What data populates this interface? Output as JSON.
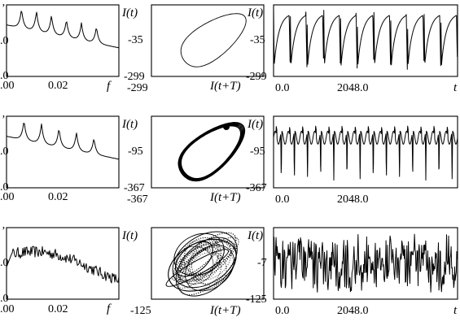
{
  "chart_data": [
    {
      "type": "line",
      "panel": "spectrum",
      "row": 1,
      "y_tick_labels": [
        "ʼ",
        ".0",
        ".0"
      ],
      "x_tick_labels": [
        ".00",
        "0.02"
      ],
      "xlabel": "f",
      "peaks_f": [
        0.006,
        0.012,
        0.018,
        0.024,
        0.03,
        0.036
      ],
      "peak_heights": [
        0.95,
        0.92,
        0.86,
        0.8,
        0.75,
        0.7
      ]
    },
    {
      "type": "line",
      "panel": "phase_portrait",
      "row": 1,
      "ylabel": "I(t)",
      "xlabel": "I(t+T)",
      "y_tick_labels": [
        "-35",
        "-299"
      ],
      "x_tick_labels": [
        "-299"
      ],
      "range": [
        -299,
        -35
      ]
    },
    {
      "type": "line",
      "panel": "time_series",
      "row": 1,
      "ylabel": "I(t)",
      "xlabel": "t",
      "y_tick_labels": [
        "-35",
        "-299"
      ],
      "x_tick_labels": [
        "0.0",
        "2048.0"
      ],
      "x_range": [
        0,
        4096
      ],
      "y_range": [
        -299,
        -35
      ],
      "cycles": 11
    },
    {
      "type": "line",
      "panel": "spectrum",
      "row": 2,
      "y_tick_labels": [
        "ʼ",
        ".0",
        ".0"
      ],
      "x_tick_labels": [
        ".00",
        "0.02"
      ],
      "xlabel": "f",
      "peaks_f": [
        0.007,
        0.014,
        0.021,
        0.028,
        0.035
      ],
      "peak_heights": [
        0.95,
        0.9,
        0.84,
        0.78,
        0.7
      ]
    },
    {
      "type": "line",
      "panel": "phase_portrait",
      "row": 2,
      "ylabel": "I(t)",
      "xlabel": "I(t+T)",
      "y_tick_labels": [
        "-95",
        "-367"
      ],
      "x_tick_labels": [
        "-367"
      ],
      "range": [
        -367,
        -95
      ]
    },
    {
      "type": "line",
      "panel": "time_series",
      "row": 2,
      "ylabel": "I(t)",
      "xlabel": "t",
      "y_tick_labels": [
        "-95",
        "-367"
      ],
      "x_tick_labels": [
        "0.0",
        "2048.0"
      ],
      "x_range": [
        0,
        4096
      ],
      "y_range": [
        -367,
        -95
      ],
      "cycles": 14
    },
    {
      "type": "line",
      "panel": "spectrum",
      "row": 3,
      "y_tick_labels": [
        "ʼ",
        ".0",
        ".0"
      ],
      "x_tick_labels": [
        ".00",
        "0.02"
      ],
      "xlabel": "f"
    },
    {
      "type": "scatter",
      "panel": "phase_portrait",
      "row": 3,
      "ylabel": "I(t)",
      "xlabel": "I(t+T)",
      "x_tick_labels": [
        "-125"
      ],
      "range": [
        -125,
        -7
      ]
    },
    {
      "type": "line",
      "panel": "time_series",
      "row": 3,
      "ylabel": "I(t)",
      "xlabel": "t",
      "y_tick_labels": [
        "-7",
        "-125"
      ],
      "x_tick_labels": [
        "0.0",
        "2048.0"
      ],
      "x_range": [
        0,
        4096
      ],
      "y_range": [
        -125,
        -7
      ]
    }
  ]
}
